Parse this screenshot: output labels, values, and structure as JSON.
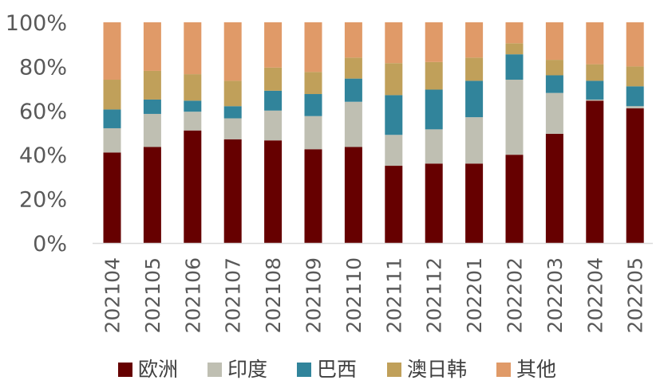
{
  "chart_data": {
    "type": "bar",
    "stacked": true,
    "title": "",
    "xlabel": "",
    "ylabel": "",
    "ylim": [
      0,
      100
    ],
    "yticks": [
      "0%",
      "20%",
      "40%",
      "60%",
      "80%",
      "100%"
    ],
    "grid": false,
    "legend_position": "bottom",
    "categories": [
      "202104",
      "202105",
      "202106",
      "202107",
      "202108",
      "202109",
      "202110",
      "202111",
      "202112",
      "202201",
      "202202",
      "202203",
      "202204",
      "202205"
    ],
    "series": [
      {
        "name": "欧洲",
        "color": "#660000",
        "values": [
          41,
          43.5,
          51,
          47,
          46.5,
          42.5,
          43.5,
          35,
          36,
          36,
          40,
          49.5,
          64.5,
          61
        ]
      },
      {
        "name": "印度",
        "color": "#bfbfb2",
        "values": [
          11,
          15,
          8.5,
          9.5,
          13.5,
          15,
          20.5,
          14,
          15.5,
          21,
          34,
          18.5,
          0.5,
          1
        ]
      },
      {
        "name": "巴西",
        "color": "#31849b",
        "values": [
          8.5,
          6.5,
          5,
          5.5,
          9,
          10,
          10.5,
          18,
          18,
          16.5,
          11.5,
          8,
          8.5,
          9
        ]
      },
      {
        "name": "澳日韩",
        "color": "#c0a05a",
        "values": [
          13.5,
          13,
          12,
          11.5,
          10.5,
          10,
          9.5,
          14.5,
          12.5,
          10.5,
          5,
          7,
          7.5,
          9
        ]
      },
      {
        "name": "其他",
        "color": "#e09a68",
        "values": [
          26,
          22,
          23.5,
          26.5,
          20.5,
          22.5,
          16,
          18.5,
          18,
          16,
          9.5,
          17,
          19,
          20
        ]
      }
    ]
  }
}
